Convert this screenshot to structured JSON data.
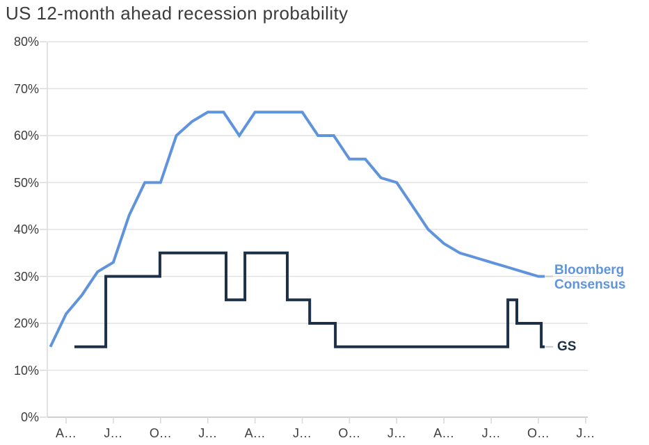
{
  "title": "US 12-month ahead recession probability",
  "series_labels": {
    "bloomberg_line1": "Bloomberg",
    "bloomberg_line2": "Consensus",
    "gs": "GS"
  },
  "colors": {
    "bloomberg_blue": "#5F94DC",
    "gs_navy": "#1C3048",
    "gridline": "#E2E2E2",
    "axis_line": "#CFCFCF",
    "tick_mark": "#D8D8D8",
    "label_dash": "#C9C9C9",
    "text": "#3D3D3D",
    "background": "#FFFFFF"
  },
  "chart_data": {
    "type": "line",
    "title": "US 12-month ahead recession probability",
    "grid": true,
    "ylim": [
      0,
      80
    ],
    "y_unit": "%",
    "y_tick_values": [
      0,
      10,
      20,
      30,
      40,
      50,
      60,
      70,
      80
    ],
    "y_tick_labels": [
      "0%",
      "10%",
      "20%",
      "30%",
      "40%",
      "50%",
      "60%",
      "70%",
      "80%"
    ],
    "x_tick_labels": [
      "A…",
      "J…",
      "O…",
      "J…",
      "A…",
      "J…",
      "O…",
      "J…",
      "A…",
      "J…",
      "O…",
      "J…"
    ],
    "x_tick_positions": [
      1,
      4,
      7,
      10,
      13,
      16,
      19,
      22,
      25,
      28,
      31,
      34
    ],
    "x_note": "x axis in month steps; ticks every 3 months, labels truncated with ellipsis",
    "legend_position": "right end of lines",
    "series": [
      {
        "name": "Bloomberg Consensus",
        "color": "#5F94DC",
        "shape": "linear",
        "points": [
          [
            0,
            15
          ],
          [
            1,
            22
          ],
          [
            2,
            26
          ],
          [
            3,
            31
          ],
          [
            4,
            33
          ],
          [
            5,
            43
          ],
          [
            6,
            50
          ],
          [
            7,
            50
          ],
          [
            8,
            60
          ],
          [
            9,
            63
          ],
          [
            10,
            65
          ],
          [
            11,
            65
          ],
          [
            12,
            60
          ],
          [
            13,
            65
          ],
          [
            14,
            65
          ],
          [
            15,
            65
          ],
          [
            16,
            65
          ],
          [
            17,
            60
          ],
          [
            18,
            60
          ],
          [
            19,
            55
          ],
          [
            20,
            55
          ],
          [
            21,
            51
          ],
          [
            22,
            50
          ],
          [
            23,
            45
          ],
          [
            24,
            40
          ],
          [
            25,
            37
          ],
          [
            26,
            35
          ],
          [
            27,
            34
          ],
          [
            28,
            33
          ],
          [
            29,
            32
          ],
          [
            30,
            31
          ],
          [
            31,
            30
          ],
          [
            31.4,
            30
          ]
        ]
      },
      {
        "name": "GS",
        "color": "#1C3048",
        "shape": "step",
        "points": [
          [
            1.53,
            15
          ],
          [
            3.52,
            15
          ],
          [
            3.52,
            30
          ],
          [
            6.96,
            30
          ],
          [
            6.96,
            35
          ],
          [
            11.16,
            35
          ],
          [
            11.16,
            25
          ],
          [
            12.36,
            25
          ],
          [
            12.36,
            35
          ],
          [
            15.05,
            35
          ],
          [
            15.05,
            25
          ],
          [
            16.47,
            25
          ],
          [
            16.47,
            20
          ],
          [
            18.1,
            20
          ],
          [
            18.1,
            15
          ],
          [
            29.06,
            15
          ],
          [
            29.06,
            25
          ],
          [
            29.63,
            25
          ],
          [
            29.63,
            20
          ],
          [
            31.18,
            20
          ],
          [
            31.18,
            15
          ],
          [
            31.4,
            15
          ]
        ]
      }
    ]
  }
}
